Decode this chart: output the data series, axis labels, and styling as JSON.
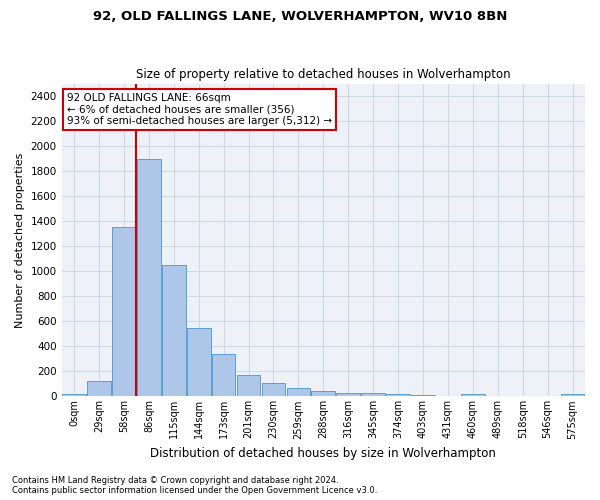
{
  "title1": "92, OLD FALLINGS LANE, WOLVERHAMPTON, WV10 8BN",
  "title2": "Size of property relative to detached houses in Wolverhampton",
  "xlabel": "Distribution of detached houses by size in Wolverhampton",
  "ylabel": "Number of detached properties",
  "footnote1": "Contains HM Land Registry data © Crown copyright and database right 2024.",
  "footnote2": "Contains public sector information licensed under the Open Government Licence v3.0.",
  "bar_labels": [
    "0sqm",
    "29sqm",
    "58sqm",
    "86sqm",
    "115sqm",
    "144sqm",
    "173sqm",
    "201sqm",
    "230sqm",
    "259sqm",
    "288sqm",
    "316sqm",
    "345sqm",
    "374sqm",
    "403sqm",
    "431sqm",
    "460sqm",
    "489sqm",
    "518sqm",
    "546sqm",
    "575sqm"
  ],
  "bar_values": [
    20,
    125,
    1350,
    1900,
    1050,
    545,
    340,
    170,
    110,
    65,
    45,
    30,
    25,
    20,
    15,
    0,
    20,
    0,
    0,
    0,
    20
  ],
  "bar_color": "#aec6e8",
  "bar_edge_color": "#5a9fd4",
  "grid_color": "#d0d8e8",
  "bg_color": "#eef2f8",
  "vline_color": "#cc0000",
  "vline_x": 2.48,
  "annotation_text": "92 OLD FALLINGS LANE: 66sqm\n← 6% of detached houses are smaller (356)\n93% of semi-detached houses are larger (5,312) →",
  "annotation_box_color": "#ffffff",
  "annotation_box_edge": "#cc0000",
  "ylim": [
    0,
    2500
  ],
  "yticks": [
    0,
    200,
    400,
    600,
    800,
    1000,
    1200,
    1400,
    1600,
    1800,
    2000,
    2200,
    2400
  ]
}
